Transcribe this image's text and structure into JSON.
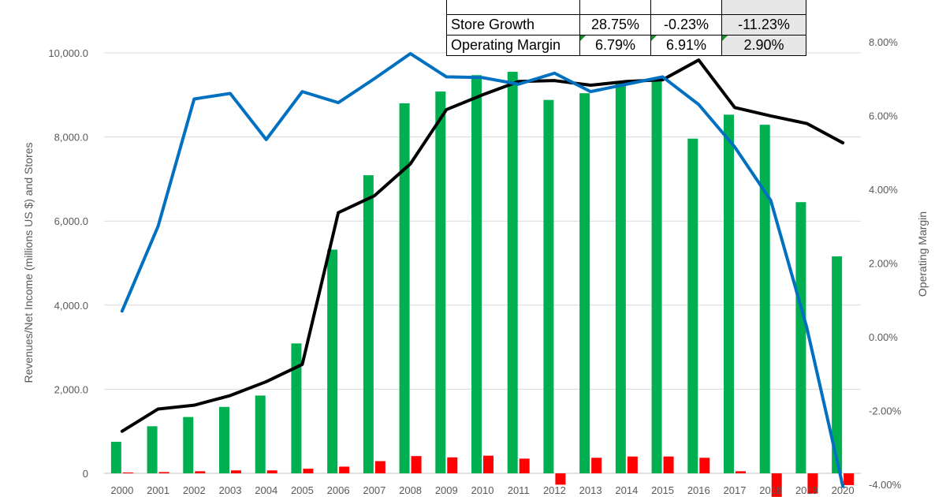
{
  "table": {
    "rows": [
      {
        "label": "",
        "values": [
          "",
          "",
          ""
        ]
      },
      {
        "label": "Store Growth",
        "values": [
          "28.75%",
          "-0.23%",
          "-11.23%"
        ]
      },
      {
        "label": "Operating Margin",
        "values": [
          "6.79%",
          "6.91%",
          "2.90%"
        ]
      }
    ]
  },
  "chart_data": {
    "type": "bar",
    "ylabel": "Revenues/Net Income (millions US $) and Stores",
    "y2label": "Operating Margin",
    "ylim": [
      0,
      10000
    ],
    "y2lim": [
      -4,
      8
    ],
    "y_ticks": [
      "0",
      "2,000.0",
      "4,000.0",
      "6,000.0",
      "8,000.0",
      "10,000.0"
    ],
    "y2_ticks": [
      "-4.00%",
      "-2.00%",
      "0.00%",
      "2.00%",
      "4.00%",
      "6.00%",
      "8.00%"
    ],
    "categories": [
      "2000",
      "2001",
      "2002",
      "2003",
      "2004",
      "2005",
      "2006",
      "2007",
      "2008",
      "2009",
      "2010",
      "2011",
      "2012",
      "2013",
      "2014",
      "2015",
      "2016",
      "2017",
      "2018",
      "2019",
      "2020"
    ],
    "grid": true,
    "series": [
      {
        "kind": "bar",
        "axis": "left",
        "color": "#00b050",
        "values": [
          750,
          1120,
          1340,
          1580,
          1850,
          3090,
          5320,
          7090,
          8800,
          9080,
          9470,
          9550,
          8880,
          9040,
          9300,
          9400,
          7960,
          8530,
          8290,
          6450,
          5160
        ]
      },
      {
        "kind": "bar",
        "axis": "left",
        "color": "#ff0000",
        "values": [
          20,
          30,
          50,
          70,
          70,
          110,
          160,
          290,
          410,
          380,
          420,
          350,
          -270,
          370,
          400,
          400,
          370,
          50,
          -560,
          -480,
          -280
        ]
      },
      {
        "kind": "line",
        "axis": "left",
        "color": "#000000",
        "values": [
          1000,
          1530,
          1620,
          1850,
          2180,
          2590,
          6200,
          6600,
          7360,
          8650,
          9000,
          9320,
          9340,
          9230,
          9320,
          9360,
          9830,
          8700,
          8500,
          8320,
          7860
        ]
      },
      {
        "kind": "line",
        "axis": "right",
        "color": "#0070c0",
        "values": [
          0.7,
          3.0,
          6.45,
          6.6,
          5.35,
          6.65,
          6.35,
          7.0,
          7.68,
          7.05,
          7.03,
          6.85,
          7.15,
          6.65,
          6.85,
          7.05,
          6.3,
          5.15,
          3.7,
          0.25,
          -4.05
        ]
      }
    ]
  }
}
